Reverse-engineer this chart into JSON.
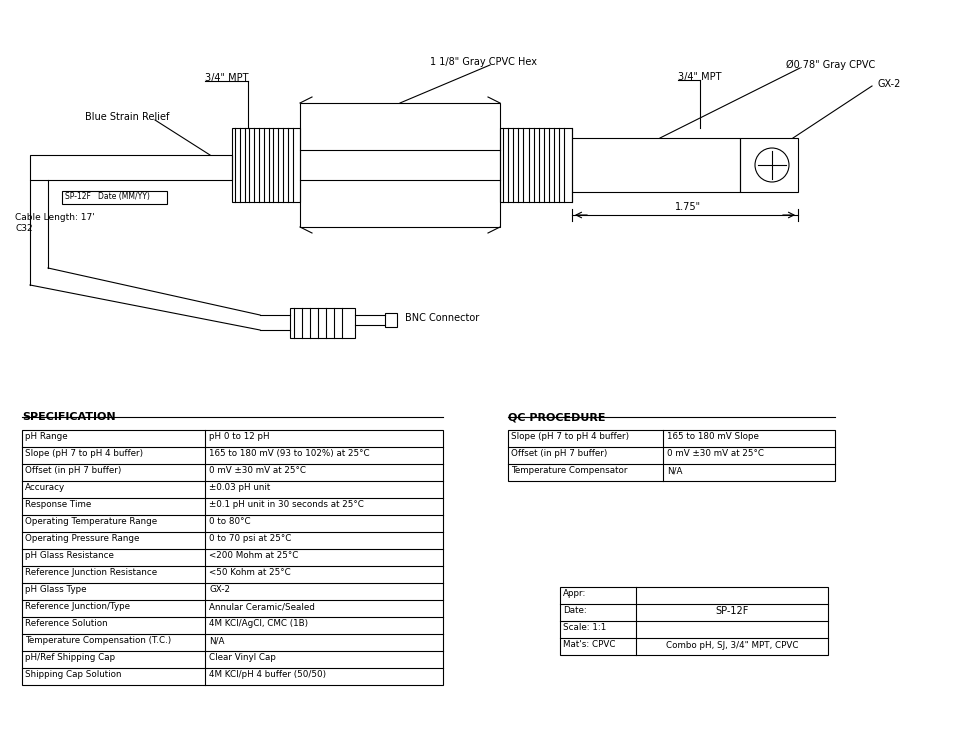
{
  "bg_color": "#ffffff",
  "line_color": "#000000",
  "spec_title": "SPECIFICATION",
  "qc_title": "QC PROCEDURE",
  "spec_rows": [
    [
      "pH Range",
      "pH 0 to 12 pH"
    ],
    [
      "Slope (pH 7 to pH 4 buffer)",
      "165 to 180 mV (93 to 102%) at 25°C"
    ],
    [
      "Offset (in pH 7 buffer)",
      "0 mV ±30 mV at 25°C"
    ],
    [
      "Accuracy",
      "±0.03 pH unit"
    ],
    [
      "Response Time",
      "±0.1 pH unit in 30 seconds at 25°C"
    ],
    [
      "Operating Temperature Range",
      "0 to 80°C"
    ],
    [
      "Operating Pressure Range",
      "0 to 70 psi at 25°C"
    ],
    [
      "pH Glass Resistance",
      "<200 Mohm at 25°C"
    ],
    [
      "Reference Junction Resistance",
      "<50 Kohm at 25°C"
    ],
    [
      "pH Glass Type",
      "GX-2"
    ],
    [
      "Reference Junction/Type",
      "Annular Ceramic/Sealed"
    ],
    [
      "Reference Solution",
      "4M KCl/AgCl, CMC (1B)"
    ],
    [
      "Temperature Compensation (T.C.)",
      "N/A"
    ],
    [
      "pH/Ref Shipping Cap",
      "Clear Vinyl Cap"
    ],
    [
      "Shipping Cap Solution",
      "4M KCl/pH 4 buffer (50/50)"
    ]
  ],
  "qc_rows": [
    [
      "Slope (pH 7 to pH 4 buffer)",
      "165 to 180 mV Slope"
    ],
    [
      "Offset (in pH 7 buffer)",
      "0 mV ±30 mV at 25°C"
    ],
    [
      "Temperature Compensator",
      "N/A"
    ]
  ],
  "info_left": [
    "Appr:",
    "Date:",
    "Scale: 1:1",
    "Mat's: CPVC"
  ],
  "info_right_top": "SP-12F",
  "info_right_bot": "Combo pH, SJ, 3/4\" MPT, CPVC",
  "labels": {
    "three_quarter_mpt_left": "3/4\" MPT",
    "one_one_eighth_gray": "1 1/8\" Gray CPVC Hex",
    "three_quarter_mpt_right": "3/4\" MPT",
    "phi_gray": "Ø0.78\" Gray CPVC",
    "gx2": "GX-2",
    "blue_strain": "Blue Strain Relief",
    "bnc": "BNC Connector",
    "cable_length": "Cable Length: 17'",
    "c32": "C32",
    "sp12f_label": "SP-12F   Date (MM/YY)",
    "dimension": "1.75\""
  }
}
